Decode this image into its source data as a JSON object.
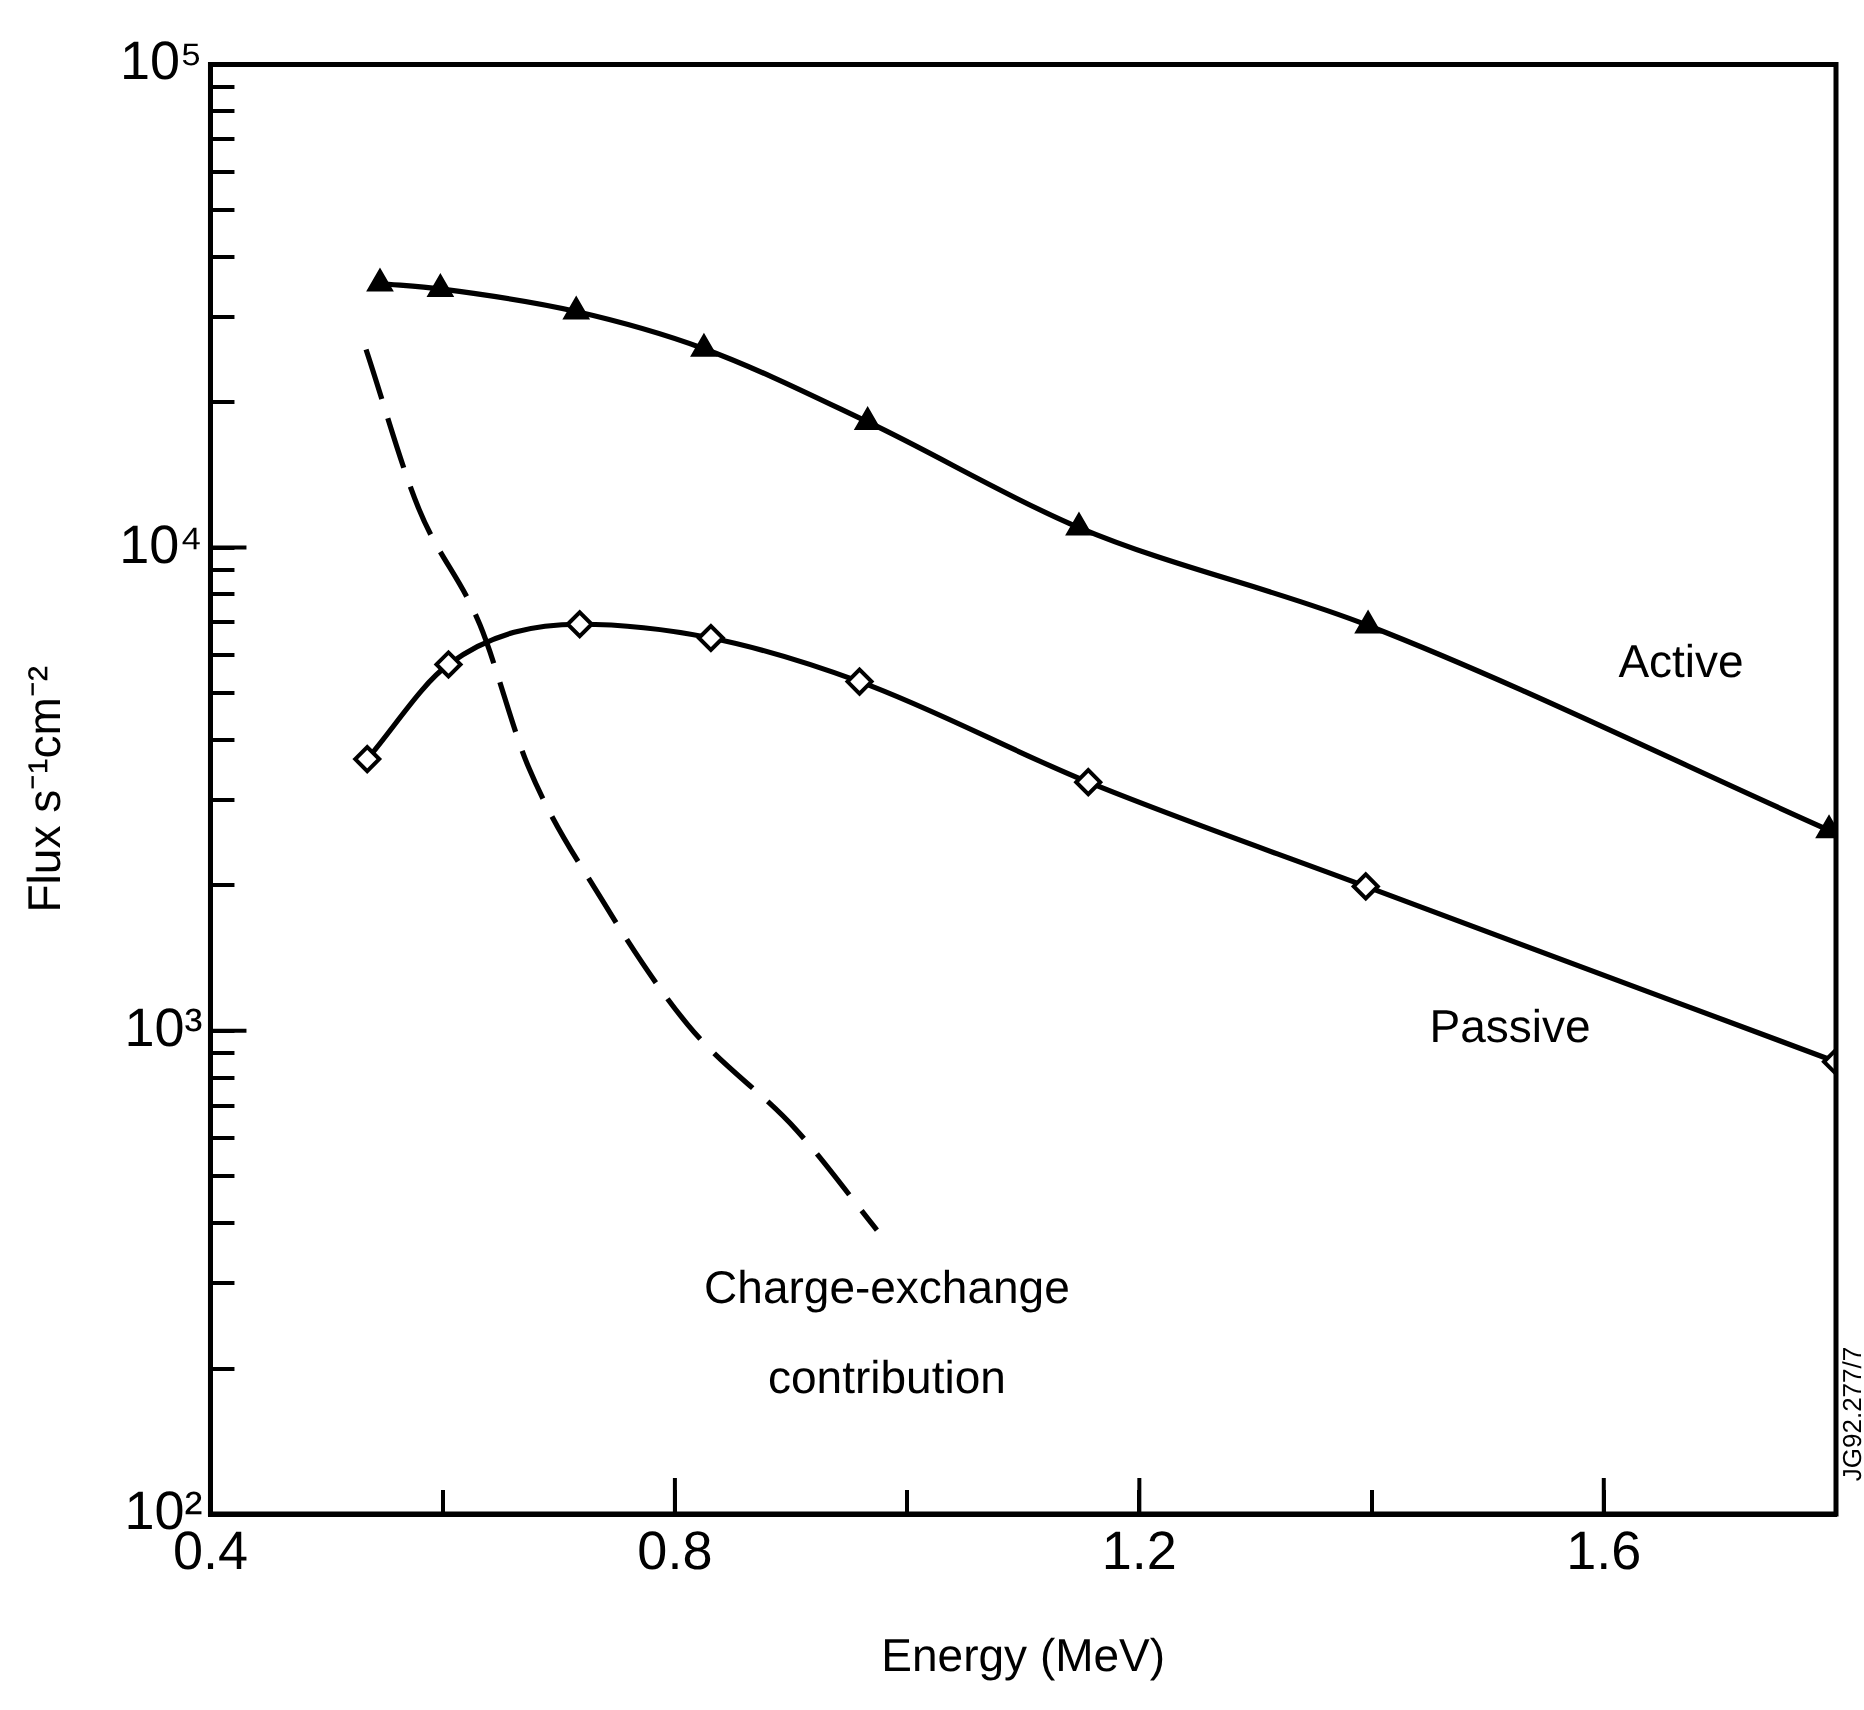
{
  "chart_data": {
    "type": "line",
    "xlabel": "Energy (MeV)",
    "ylabel": "Flux s⁻¹cm⁻²",
    "log": "y",
    "xlim": [
      0.4,
      1.8
    ],
    "xticks": [
      0.4,
      {
        "value": 0.6,
        "label": null
      },
      0.8,
      {
        "value": 1.0,
        "label": null
      },
      1.2,
      {
        "value": 1.4,
        "label": null
      },
      1.6
    ],
    "ylim": [
      100,
      100000
    ],
    "yticks": [
      {
        "value": 100,
        "label": "10²"
      },
      {
        "value": 200,
        "label": null
      },
      {
        "value": 300,
        "label": null
      },
      {
        "value": 400,
        "label": null
      },
      {
        "value": 500,
        "label": null
      },
      {
        "value": 600,
        "label": null
      },
      {
        "value": 700,
        "label": null
      },
      {
        "value": 800,
        "label": null
      },
      {
        "value": 900,
        "label": null
      },
      {
        "value": 1000,
        "label": "10³"
      },
      {
        "value": 2000,
        "label": null
      },
      {
        "value": 3000,
        "label": null
      },
      {
        "value": 4000,
        "label": null
      },
      {
        "value": 5000,
        "label": null
      },
      {
        "value": 6000,
        "label": null
      },
      {
        "value": 7000,
        "label": null
      },
      {
        "value": 8000,
        "label": null
      },
      {
        "value": 9000,
        "label": null
      },
      {
        "value": 10000,
        "label": "10⁴"
      },
      {
        "value": 20000,
        "label": null
      },
      {
        "value": 30000,
        "label": null
      },
      {
        "value": 40000,
        "label": null
      },
      {
        "value": 50000,
        "label": null
      },
      {
        "value": 60000,
        "label": null
      },
      {
        "value": 70000,
        "label": null
      },
      {
        "value": 80000,
        "label": null
      },
      {
        "value": 90000,
        "label": null
      },
      {
        "value": 100000,
        "label": "10⁵"
      }
    ],
    "series": [
      {
        "name": "Active",
        "color": "#000000",
        "marker": "triangle",
        "line_style": "solid",
        "x": [
          0.546,
          0.598,
          0.715,
          0.825,
          0.966,
          1.148,
          1.397,
          1.794
        ],
        "values": [
          35200,
          34300,
          30800,
          25800,
          18200,
          11000,
          6900,
          2600
        ]
      },
      {
        "name": "Passive",
        "color": "#000000",
        "marker": "diamond",
        "line_style": "solid",
        "x": [
          0.535,
          0.605,
          0.718,
          0.831,
          0.959,
          1.156,
          1.395,
          1.8
        ],
        "values": [
          3650,
          5730,
          6940,
          6500,
          5280,
          3270,
          1990,
          863
        ]
      },
      {
        "name": "Charge-exchange contribution",
        "color": "#000000",
        "marker": "none",
        "line_style": "dashed",
        "x": [
          0.534,
          0.579,
          0.632,
          0.674,
          0.737,
          0.811,
          0.905,
          0.974
        ],
        "values": [
          25700,
          12100,
          6930,
          3510,
          1870,
          1030,
          622,
          387
        ]
      }
    ],
    "annotations": [
      "JG92.277/7"
    ]
  }
}
